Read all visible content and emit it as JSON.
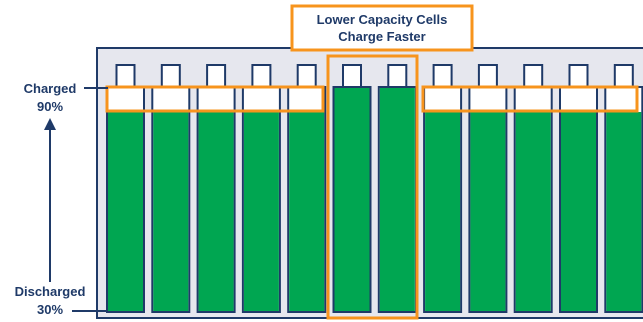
{
  "callout": {
    "line1": "Lower Capacity Cells",
    "line2": "Charge Faster"
  },
  "axis": {
    "top_label_line1": "Charged",
    "top_label_line2": "90%",
    "bottom_label_line1": "Discharged",
    "bottom_label_line2": "30%"
  },
  "colors": {
    "cell_fill": "#00a651",
    "cell_outline": "#1f3a68",
    "highlight": "#f7941d",
    "pack_background": "#e6e7ee",
    "text": "#1f3a68"
  },
  "cells": [
    {
      "charge_level": "normal"
    },
    {
      "charge_level": "normal"
    },
    {
      "charge_level": "normal"
    },
    {
      "charge_level": "normal"
    },
    {
      "charge_level": "normal"
    },
    {
      "charge_level": "high"
    },
    {
      "charge_level": "high"
    },
    {
      "charge_level": "normal"
    },
    {
      "charge_level": "normal"
    },
    {
      "charge_level": "normal"
    },
    {
      "charge_level": "normal"
    },
    {
      "charge_level": "normal"
    }
  ]
}
